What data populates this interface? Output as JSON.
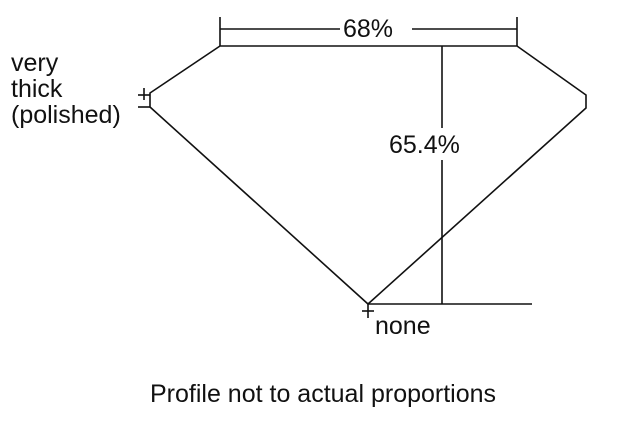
{
  "labels": {
    "table_percent": "68%",
    "depth_percent": "65.4%",
    "girdle_line1": "very",
    "girdle_line2": "thick",
    "girdle_line3": "(polished)",
    "culet": "none",
    "caption": "Profile not to actual proportions"
  },
  "colors": {
    "line": "#111111",
    "background": "#ffffff"
  }
}
